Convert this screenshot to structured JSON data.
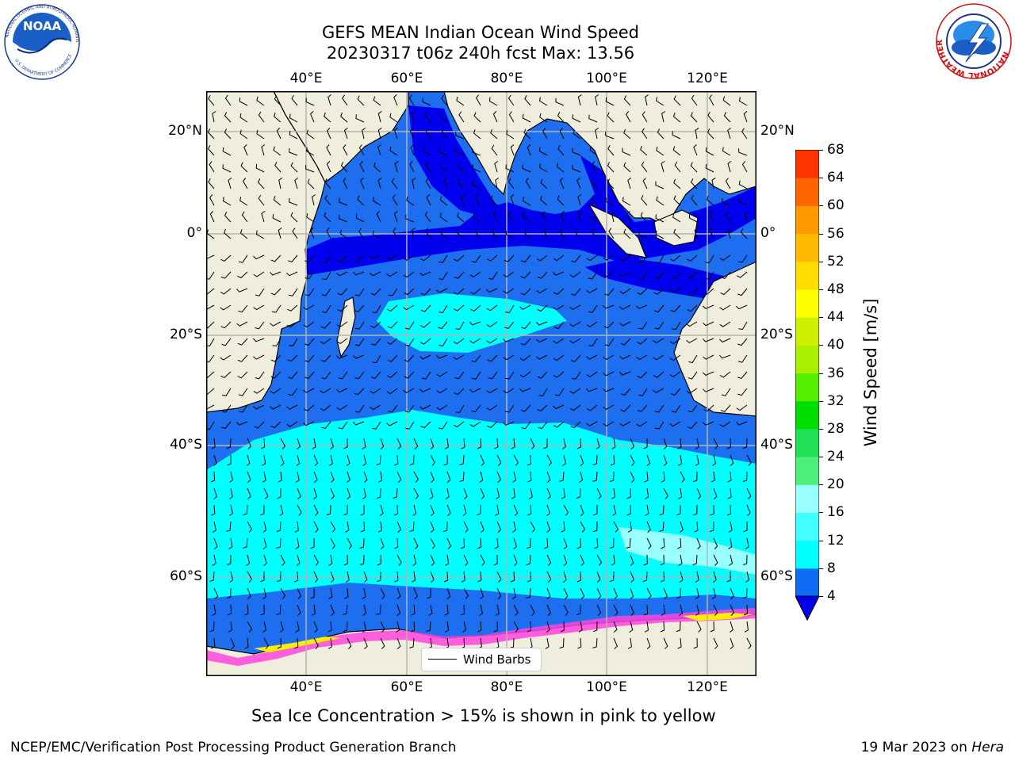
{
  "header": {
    "title_line1": "GEFS MEAN Indian Ocean Wind Speed",
    "title_line2": "20230317 t06z 240h fcst   Max: 13.56"
  },
  "logos": {
    "noaa": {
      "text": "NOAA",
      "ring_text": "NATIONAL OCEANIC AND ATMOSPHERIC ADMINISTRATION",
      "ring_text_bottom": "U.S. DEPARTMENT OF COMMERCE"
    },
    "nws": {
      "ring_text": "NATIONAL WEATHER SERVICE"
    }
  },
  "map": {
    "lon_labels": [
      "40°E",
      "60°E",
      "80°E",
      "100°E",
      "120°E"
    ],
    "lat_labels": [
      "20°N",
      "0°",
      "20°S",
      "40°S",
      "60°S"
    ],
    "legend_label": "Wind Barbs",
    "colors": {
      "land": "#efeedd",
      "dark_blue": "#0000ee",
      "mid_blue": "#1e6ef0",
      "cyan": "#00ffff",
      "light_cyan": "#55ffff",
      "pale_cyan": "#99ffff",
      "ice_pink": "#ff44dd",
      "ice_yellow": "#ffee00"
    }
  },
  "colorbar": {
    "label": "Wind Speed [m/s]",
    "ticks": [
      "4",
      "8",
      "12",
      "16",
      "20",
      "24",
      "28",
      "32",
      "36",
      "40",
      "44",
      "48",
      "52",
      "56",
      "60",
      "64",
      "68"
    ],
    "colors": [
      "#0d6cf2",
      "#00ffff",
      "#44ffff",
      "#99ffff",
      "#4cf07a",
      "#22e055",
      "#00dd00",
      "#55ee00",
      "#aaee00",
      "#ccf000",
      "#ffff00",
      "#ffdd00",
      "#ffbb00",
      "#ff9900",
      "#ff6600",
      "#ff3300",
      "#ff0000"
    ],
    "extend_color": "#0000ee"
  },
  "notes": {
    "sea_ice": "Sea Ice Concentration > 15% is shown in pink to yellow"
  },
  "footer": {
    "left": "NCEP/EMC/Verification Post Processing Product Generation Branch",
    "date": "19 Mar 2023 on ",
    "machine": "Hera"
  }
}
